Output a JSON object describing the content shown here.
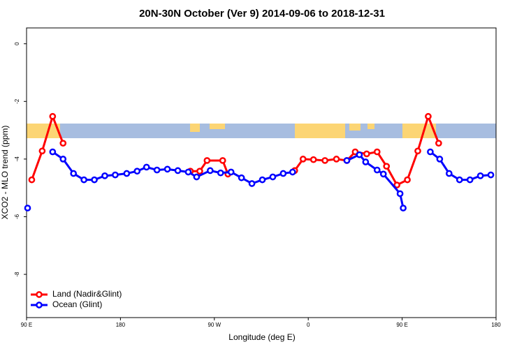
{
  "chart_data": {
    "type": "line",
    "title": "20N-30N October (Ver 9)   2014-09-06 to 2018-12-31",
    "xlabel": "Longitude (deg E)",
    "ylabel": "XCO2 - MLO trend (ppm)",
    "xlim": [
      90,
      540
    ],
    "xticks": [
      {
        "value": 90,
        "label": "90 E"
      },
      180,
      {
        "value": 270,
        "label": "90 W"
      },
      {
        "value": 360,
        "label": "0"
      },
      {
        "value": 450,
        "label": "90 E"
      },
      {
        "value": 540,
        "label": "180"
      }
    ],
    "ylim": [
      -9.5,
      0.55
    ],
    "yticks": [
      0,
      -2,
      -4,
      -6,
      -8
    ],
    "legend": "bottomleft",
    "series": [
      {
        "name": "Land (Nadir&Glint)",
        "color": "#ff0000",
        "x": [
          95,
          105,
          115,
          125,
          null,
          247,
          256,
          263,
          278,
          283,
          null,
          347,
          355,
          365,
          376,
          387,
          397,
          405,
          416,
          426,
          435,
          445,
          455,
          465,
          475,
          485
        ],
        "values": [
          -4.72,
          -3.72,
          -2.52,
          -3.45,
          null,
          -4.42,
          -4.42,
          -4.05,
          -4.05,
          -4.52,
          null,
          -4.4,
          -4.0,
          -4.02,
          -4.05,
          -4.0,
          -4.05,
          -3.75,
          -3.82,
          -3.75,
          -4.25,
          -4.9,
          -4.72,
          -3.72,
          -2.52,
          -3.45
        ]
      },
      {
        "name": "Ocean (Glint)",
        "color": "#0000ff",
        "x": [
          91,
          null,
          115,
          125,
          135,
          145,
          155,
          165,
          175,
          186,
          196,
          205,
          215,
          225,
          235,
          245,
          253,
          266,
          276,
          286,
          296,
          306,
          316,
          326,
          336,
          345,
          null,
          397,
          409,
          415,
          426,
          432,
          448,
          451,
          null,
          477,
          486,
          495,
          505,
          515,
          525,
          535
        ],
        "values": [
          -5.7,
          null,
          -3.75,
          -4.0,
          -4.5,
          -4.72,
          -4.72,
          -4.58,
          -4.55,
          -4.5,
          -4.42,
          -4.28,
          -4.38,
          -4.35,
          -4.4,
          -4.45,
          -4.62,
          -4.4,
          -4.48,
          -4.45,
          -4.65,
          -4.85,
          -4.72,
          -4.62,
          -4.5,
          -4.45,
          null,
          -4.05,
          -3.85,
          -4.1,
          -4.38,
          -4.52,
          -5.2,
          -5.7,
          null,
          -3.75,
          -4.0,
          -4.5,
          -4.72,
          -4.72,
          -4.58,
          -4.55
        ]
      }
    ]
  }
}
